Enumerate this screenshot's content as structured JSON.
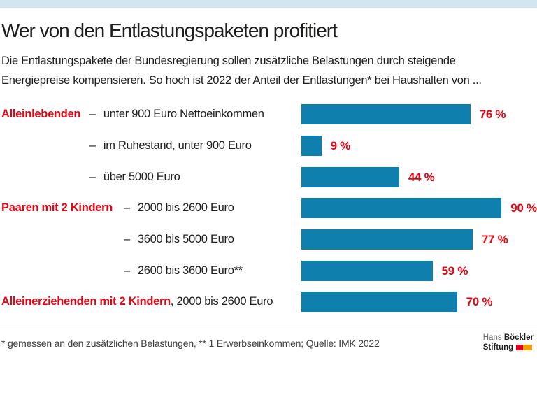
{
  "header": {
    "title": "Wer von den Entlastungspaketen profitiert",
    "subtitle_line1": "Die Entlastungspakete der Bundesregierung sollen zusätzliche Belastungen durch steigende",
    "subtitle_line2": "Energiepreise kompensieren. So hoch ist 2022 der Anteil der Entlastungen* bei Haushalten von ..."
  },
  "chart_data": {
    "type": "bar",
    "orientation": "horizontal",
    "unit": "%",
    "xlim": [
      0,
      100
    ],
    "grid": false,
    "legend": false,
    "bar_color": "#0f7fad",
    "value_label_color": "#e30613",
    "rows": [
      {
        "group": "Alleinlebenden",
        "separator": "–",
        "label": "unter 900 Euro Nettoeinkommen",
        "value": 76,
        "value_label": "76 %"
      },
      {
        "group": "",
        "separator": "–",
        "label": "im Ruhestand, unter 900 Euro",
        "value": 9,
        "value_label": "9 %"
      },
      {
        "group": "",
        "separator": "–",
        "label": "über 5000 Euro",
        "value": 44,
        "value_label": "44 %"
      },
      {
        "group": "Paaren mit 2 Kindern",
        "separator": "–",
        "label": "2000 bis 2600 Euro",
        "value": 90,
        "value_label": "90 %"
      },
      {
        "group": "",
        "separator": "–",
        "label": "3600 bis 5000 Euro",
        "value": 77,
        "value_label": "77 %"
      },
      {
        "group": "",
        "separator": "–",
        "label": "2600 bis 3600 Euro**",
        "value": 59,
        "value_label": "59 %"
      },
      {
        "group": "Alleinerziehenden mit 2 Kindern",
        "separator": "",
        "label": ", 2000 bis 2600 Euro",
        "value": 70,
        "value_label": "70 %"
      }
    ]
  },
  "footer": {
    "note": "* gemessen an den zusätzlichen Belastungen, ** 1 Erwerbseinkommen; Quelle: IMK 2022",
    "logo": {
      "name_regular": "Hans",
      "name_bold": "Böckler",
      "line2": "Stiftung"
    }
  },
  "colors": {
    "top_strip": "#d3e6f0",
    "bar_blue": "#0f7fad",
    "accent_red": "#e30613",
    "logo_red": "#e2001a",
    "logo_orange": "#f59c00",
    "text_black": "#1d1d1b"
  }
}
